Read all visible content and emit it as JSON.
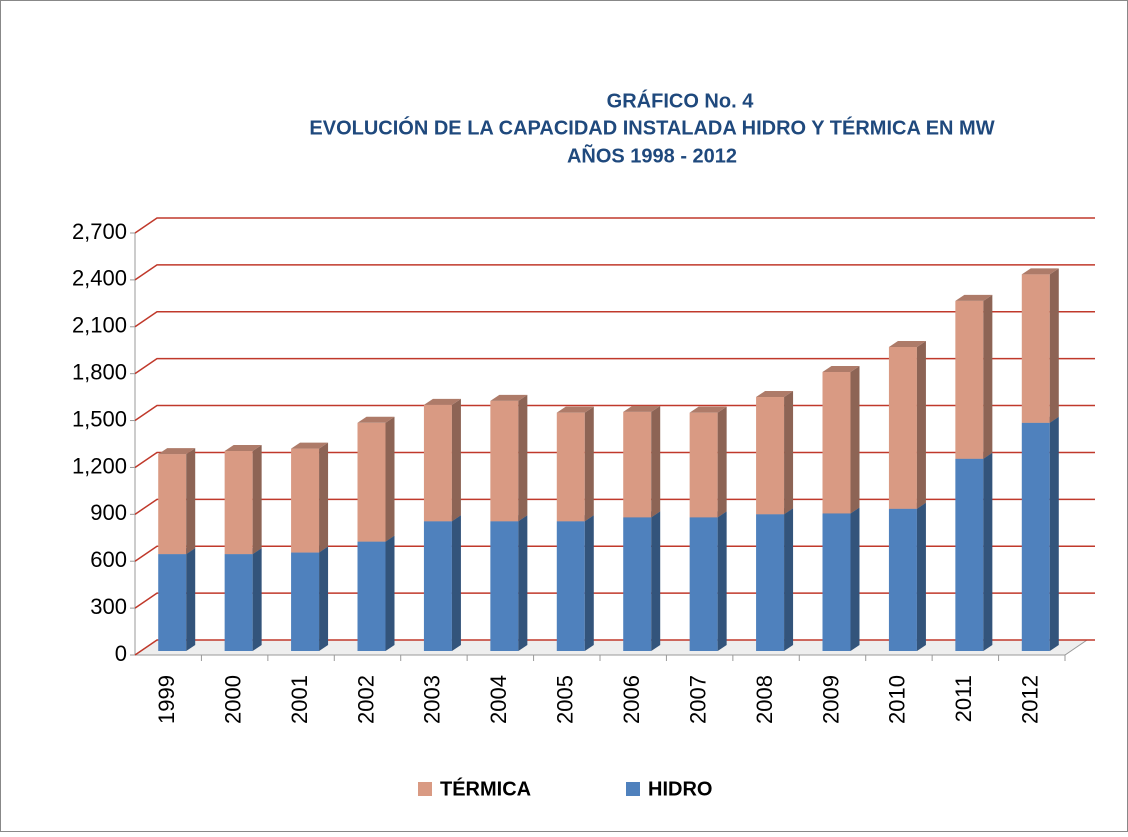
{
  "chart_data": {
    "type": "bar3d_stacked",
    "title": [
      "GRÁFICO No. 4",
      "EVOLUCIÓN DE LA CAPACIDAD INSTALADA HIDRO Y TÉRMICA EN MW",
      "AÑOS  1998 - 2012"
    ],
    "categories": [
      "1999",
      "2000",
      "2001",
      "2002",
      "2003",
      "2004",
      "2005",
      "2006",
      "2007",
      "2008",
      "2009",
      "2010",
      "2011",
      "2012"
    ],
    "series": [
      {
        "name": "HIDRO",
        "color": "#4f81bd",
        "values": [
          620,
          620,
          630,
          700,
          830,
          830,
          830,
          855,
          855,
          875,
          880,
          910,
          1230,
          1460
        ]
      },
      {
        "name": "TÉRMICA",
        "color": "#d99a83",
        "values": [
          640,
          660,
          665,
          760,
          745,
          770,
          695,
          675,
          670,
          750,
          905,
          1035,
          1010,
          950
        ]
      }
    ],
    "ylim": [
      0,
      2700
    ],
    "yticks": [
      0,
      300,
      600,
      900,
      {
        "value": 1200,
        "label": "1,200"
      },
      {
        "value": 1500,
        "label": "1,500"
      },
      {
        "value": 1800,
        "label": "1,800"
      },
      {
        "value": 2100,
        "label": "2,100"
      },
      {
        "value": 2400,
        "label": "2,400"
      },
      {
        "value": 2700,
        "label": "2,700"
      }
    ],
    "grid": true,
    "grid_color": "#c0392b",
    "legend": "bottom"
  }
}
